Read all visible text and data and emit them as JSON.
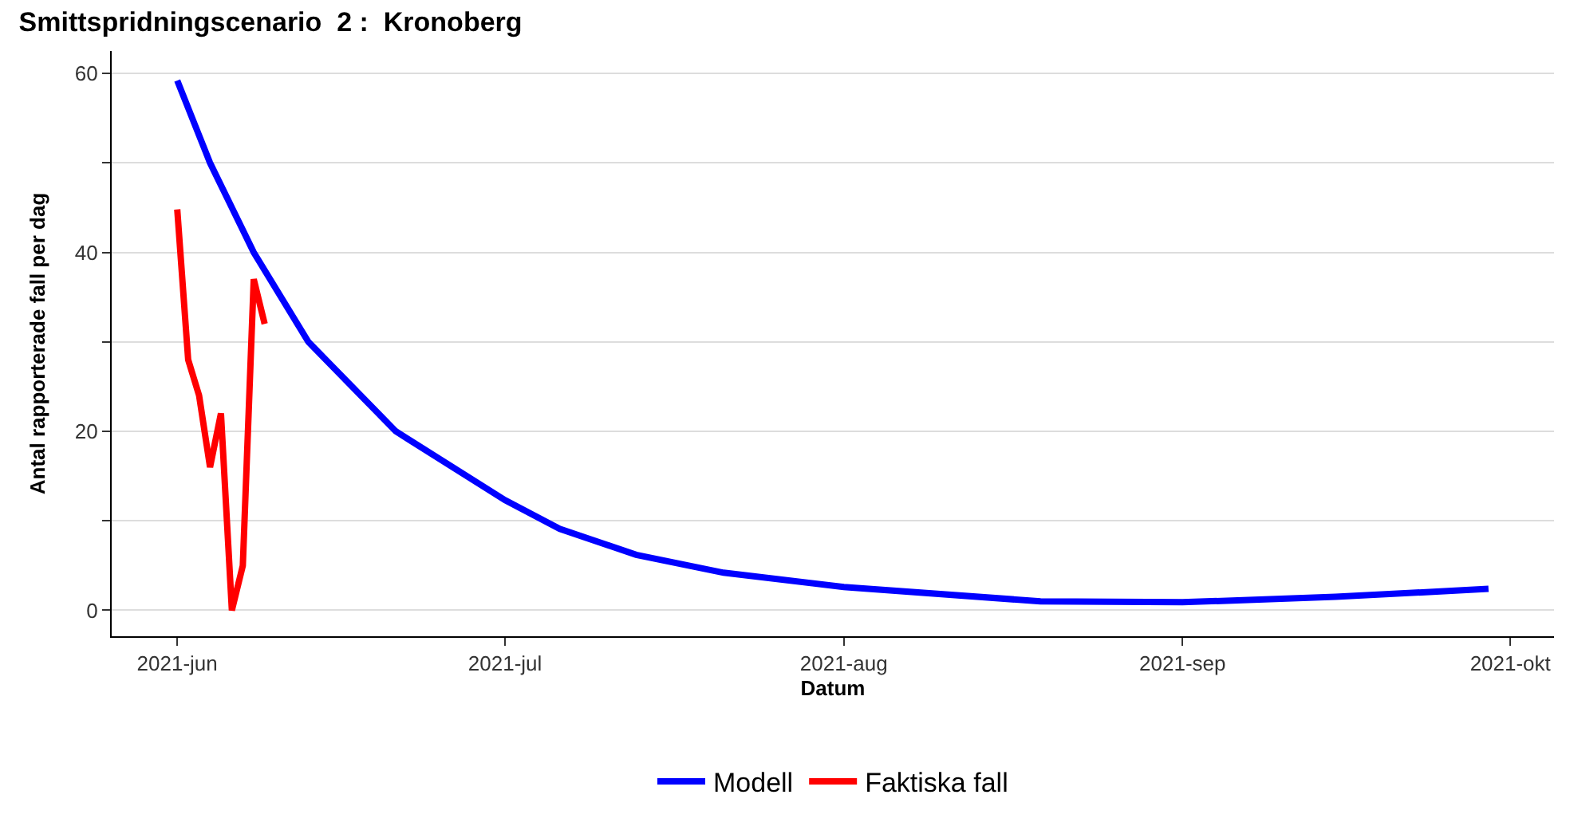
{
  "chart_data": {
    "type": "line",
    "title": "Smittspridningscenario  2 :  Kronoberg",
    "xlabel": "Datum",
    "ylabel": "Antal rapporterade fall per dag",
    "series": [
      {
        "name": "Modell",
        "color": "#0000ff",
        "x": [
          "2021-06-01",
          "2021-06-04",
          "2021-06-08",
          "2021-06-13",
          "2021-06-21",
          "2021-07-01",
          "2021-07-06",
          "2021-07-13",
          "2021-07-21",
          "2021-08-01",
          "2021-08-19",
          "2021-09-01",
          "2021-09-15",
          "2021-09-29"
        ],
        "values": [
          59.2,
          50,
          40,
          30,
          20,
          12.3,
          9.1,
          6.2,
          4.2,
          2.6,
          1.0,
          0.9,
          1.5,
          2.4
        ]
      },
      {
        "name": "Faktiska fall",
        "color": "#ff0000",
        "x": [
          "2021-06-01",
          "2021-06-02",
          "2021-06-03",
          "2021-06-04",
          "2021-06-05",
          "2021-06-06",
          "2021-06-07",
          "2021-06-08",
          "2021-06-09"
        ],
        "values": [
          44.8,
          28,
          24,
          16,
          22,
          0,
          5,
          37,
          32
        ]
      }
    ],
    "xlim": [
      "2021-05-26",
      "2021-10-05"
    ],
    "xticks": [
      {
        "value": "2021-06-01",
        "label": "2021-jun"
      },
      {
        "value": "2021-07-01",
        "label": "2021-jul"
      },
      {
        "value": "2021-08-01",
        "label": "2021-aug"
      },
      {
        "value": "2021-09-01",
        "label": "2021-sep"
      },
      {
        "value": "2021-10-01",
        "label": "2021-okt"
      }
    ],
    "ylim": [
      -2.9,
      62.5
    ],
    "yticks": [
      0,
      {
        "value": 10,
        "label": null
      },
      20,
      {
        "value": 30,
        "label": null
      },
      40,
      {
        "value": 50,
        "label": null
      },
      60
    ],
    "grid": "y",
    "legend": "bottom",
    "line_style": "solid",
    "marker": "none"
  }
}
